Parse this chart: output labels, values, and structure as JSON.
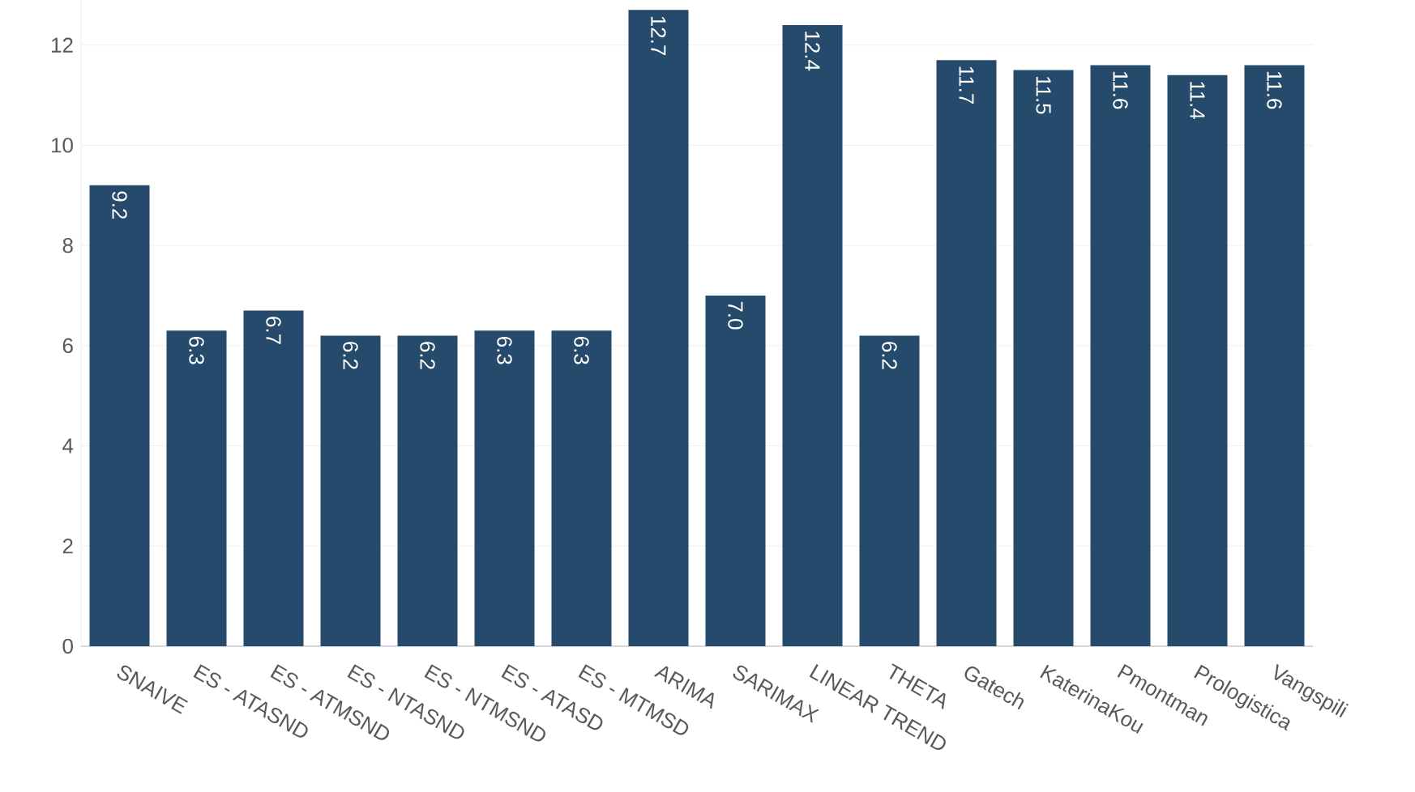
{
  "chart_data": {
    "type": "bar",
    "categories": [
      "SNAIVE",
      "ES - ATASND",
      "ES - ATMSND",
      "ES - NTASND",
      "ES - NTMSND",
      "ES - ATASD",
      "ES - MTMSD",
      "ARIMA",
      "SARIMAX",
      "LINEAR TREND",
      "THETA",
      "Gatech",
      "KaterinaKou",
      "Pmontman",
      "Prologistica",
      "Vangspili"
    ],
    "values": [
      9.2,
      6.3,
      6.7,
      6.2,
      6.2,
      6.3,
      6.3,
      12.7,
      7.0,
      12.4,
      6.2,
      11.7,
      11.5,
      11.6,
      11.4,
      11.6
    ],
    "value_labels": [
      "9.2",
      "6.3",
      "6.7",
      "6.2",
      "6.2",
      "6.3",
      "6.3",
      "12.7",
      "7.0",
      "12.4",
      "6.2",
      "11.7",
      "11.5",
      "11.6",
      "11.4",
      "11.6"
    ],
    "color": "#254a6b",
    "ylim": [
      0,
      12.9
    ],
    "yticks": [
      0,
      2,
      4,
      6,
      8,
      10,
      12
    ],
    "grid": "y"
  }
}
